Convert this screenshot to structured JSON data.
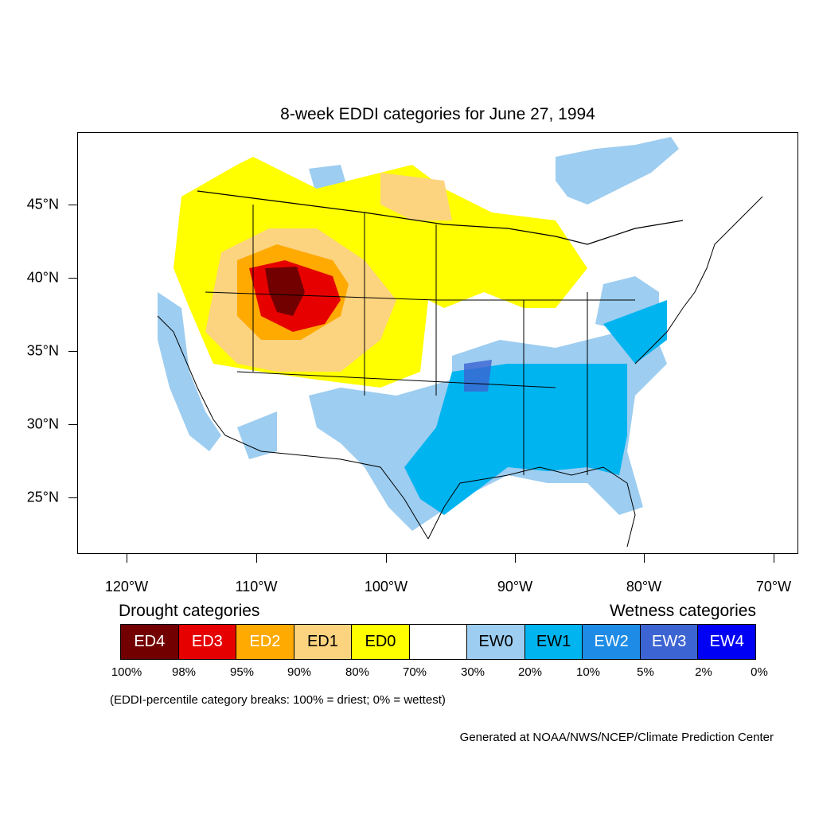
{
  "title": "8-week EDDI categories for June 27, 1994",
  "lat_labels": [
    "45°N",
    "40°N",
    "35°N",
    "30°N",
    "25°N"
  ],
  "lon_labels": [
    "120°W",
    "110°W",
    "100°W",
    "90°W",
    "80°W",
    "70°W"
  ],
  "legend": {
    "drought_heading": "Drought categories",
    "wetness_heading": "Wetness categories",
    "categories": [
      {
        "label": "ED4",
        "color": "#730000",
        "text_color": "#ffffff"
      },
      {
        "label": "ED3",
        "color": "#e60000",
        "text_color": "#ffffff"
      },
      {
        "label": "ED2",
        "color": "#ffaa00",
        "text_color": "#ffffff"
      },
      {
        "label": "ED1",
        "color": "#fcd37f",
        "text_color": "#000000"
      },
      {
        "label": "ED0",
        "color": "#ffff00",
        "text_color": "#000000"
      },
      {
        "label": "",
        "color": "#ffffff",
        "text_color": "#000000"
      },
      {
        "label": "EW0",
        "color": "#9dcdf0",
        "text_color": "#000000"
      },
      {
        "label": "EW1",
        "color": "#00b4f0",
        "text_color": "#000000"
      },
      {
        "label": "EW2",
        "color": "#1e8ce6",
        "text_color": "#ffffff"
      },
      {
        "label": "EW3",
        "color": "#3c64d2",
        "text_color": "#ffffff"
      },
      {
        "label": "EW4",
        "color": "#0000f5",
        "text_color": "#ffffff"
      }
    ],
    "percent_breaks": [
      "100%",
      "98%",
      "95%",
      "90%",
      "80%",
      "70%",
      "30%",
      "20%",
      "10%",
      "5%",
      "2%",
      "0%"
    ]
  },
  "note": "(EDDI-percentile category breaks: 100% = driest; 0% = wettest)",
  "credit": "Generated at NOAA/NWS/NCEP/Climate Prediction Center"
}
